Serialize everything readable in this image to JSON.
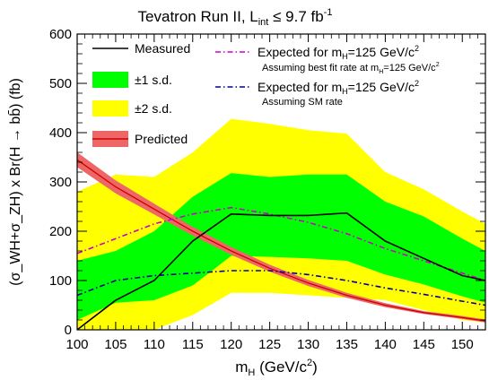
{
  "chart_data": {
    "type": "line",
    "title_main": "Tevatron Run II,  L",
    "title_sub": "int",
    "title_rel": " ≤ 9.7 fb",
    "title_sup": "-1",
    "xlabel": "m",
    "xlabel_sub": "H",
    "xlabel_unit": " (GeV/c",
    "xlabel_sup": "2",
    "xlabel_close": ")",
    "ylabel": "(σ_WH+σ_ZH) x Br(H → bb̄) (fb)",
    "xlim": [
      100,
      153
    ],
    "ylim": [
      0,
      600
    ],
    "xticks": [
      100,
      105,
      110,
      115,
      120,
      125,
      130,
      135,
      140,
      145,
      150
    ],
    "yticks": [
      0,
      100,
      200,
      300,
      400,
      500,
      600
    ],
    "x_labels": [
      "100",
      "105",
      "110",
      "115",
      "120",
      "125",
      "130",
      "135",
      "140",
      "145",
      "150"
    ],
    "y_labels": [
      "0",
      "100",
      "200",
      "300",
      "400",
      "500",
      "600"
    ],
    "colors": {
      "band2": "#ffff00",
      "band1": "#00ff00",
      "measured": "#000000",
      "predicted_fill": "#ee6666",
      "predicted_line": "#cc0000",
      "exp_bestfit": "#cc00cc",
      "exp_sm": "#000099"
    },
    "x": [
      100,
      105,
      110,
      115,
      120,
      125,
      130,
      135,
      140,
      145,
      150,
      153
    ],
    "series": [
      {
        "name": "Measured",
        "values": [
          0,
          60,
          100,
          180,
          235,
          232,
          232,
          237,
          180,
          145,
          110,
          100
        ]
      },
      {
        "name": "Expected for mH=125 GeV/c2 Assuming best fit rate at mH=125 GeV/c2",
        "values": [
          155,
          185,
          215,
          235,
          248,
          235,
          218,
          195,
          165,
          140,
          115,
          100
        ]
      },
      {
        "name": "Expected for mH=125 GeV/c2 Assuming SM rate",
        "values": [
          70,
          100,
          110,
          115,
          120,
          120,
          112,
          100,
          85,
          72,
          58,
          50
        ]
      },
      {
        "name": "Predicted",
        "values": [
          345,
          290,
          245,
          200,
          160,
          125,
          95,
          70,
          50,
          35,
          25,
          18
        ],
        "band_halfwidth": [
          15,
          13,
          11,
          9,
          8,
          7,
          6,
          5,
          4,
          3,
          3,
          3
        ]
      },
      {
        "name": "±1 s.d.",
        "lower": [
          20,
          55,
          60,
          90,
          150,
          148,
          145,
          140,
          112,
          92,
          68,
          55
        ],
        "upper": [
          140,
          160,
          200,
          270,
          318,
          310,
          315,
          315,
          260,
          230,
          185,
          160
        ]
      },
      {
        "name": "±2 s.d.",
        "lower": [
          0,
          0,
          0,
          30,
          75,
          75,
          70,
          65,
          60,
          40,
          20,
          15
        ],
        "upper": [
          280,
          315,
          310,
          360,
          428,
          418,
          405,
          398,
          320,
          285,
          240,
          215
        ]
      }
    ],
    "legend": {
      "measured": "Measured",
      "sd1": "±1 s.d.",
      "sd2": "±2 s.d.",
      "predicted": "Predicted",
      "exp_best_main": "Expected for m",
      "exp_best_sub": "H",
      "exp_best_tail": "=125 GeV/c",
      "exp_best_sup": "2",
      "exp_best_note_main": "Assuming best fit rate at m",
      "exp_best_note_sub": "H",
      "exp_best_note_tail": "=125 GeV/c",
      "exp_best_note_sup": "2",
      "exp_sm_main": "Expected for m",
      "exp_sm_sub": "H",
      "exp_sm_tail": "=125 GeV/c",
      "exp_sm_sup": "2",
      "exp_sm_note": "Assuming SM rate"
    }
  }
}
